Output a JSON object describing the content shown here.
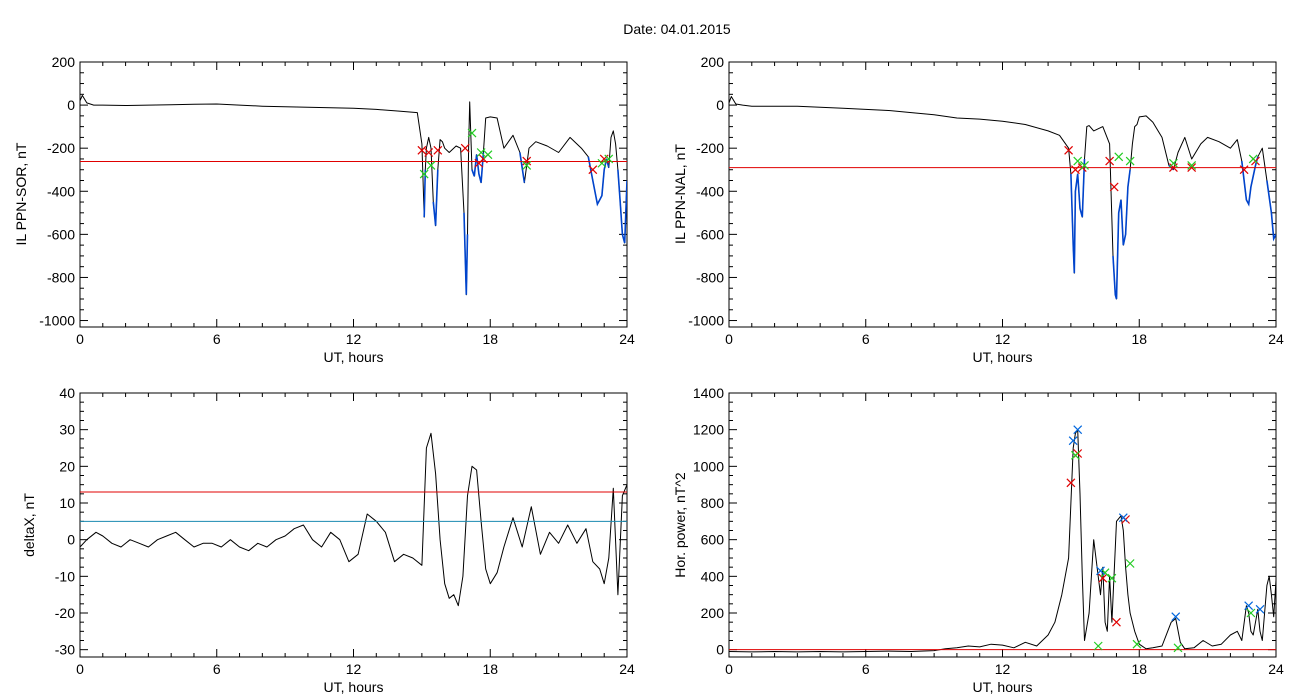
{
  "title": "Date:  04.01.2015",
  "colors": {
    "axis": "#000000",
    "signal": "#000000",
    "substorm_segment": "#0044cc",
    "threshold_red": "#e00000",
    "threshold_cyan": "#1a8ab0",
    "marker_red": "#e00000",
    "marker_green": "#22cc22",
    "marker_blue": "#0066dd"
  },
  "chart_data": [
    {
      "type": "line",
      "xlabel": "UT, hours",
      "ylabel": "IL PPN-SOR, nT",
      "xlim": [
        0,
        24
      ],
      "ylim": [
        -1030,
        200
      ],
      "xticks": [
        0,
        6,
        12,
        18,
        24
      ],
      "yticks": [
        -1000,
        -800,
        -600,
        -400,
        -200,
        0,
        200
      ],
      "threshold_lines": [
        {
          "color": "red",
          "y": -262
        }
      ],
      "series": [
        {
          "color": "black",
          "x": [
            0,
            0.1,
            0.3,
            0.6,
            1,
            2,
            3,
            4,
            5,
            6,
            7,
            8,
            9,
            10,
            11,
            12,
            13,
            14,
            14.8,
            15.0,
            15.1,
            15.15,
            15.2,
            15.3,
            15.4,
            15.5,
            15.6,
            15.7,
            15.8,
            15.9,
            16.0,
            16.2,
            16.5,
            16.7,
            16.85,
            16.95,
            17.0,
            17.05,
            17.1,
            17.2,
            17.3,
            17.4,
            17.5,
            17.6,
            17.7,
            17.8,
            18.0,
            18.3,
            18.6,
            19.0,
            19.3,
            19.5,
            19.7,
            20.0,
            20.5,
            21.0,
            21.5,
            22.0,
            22.3,
            22.5,
            22.7,
            22.8,
            22.9,
            23.0,
            23.1,
            23.2,
            23.3,
            23.4,
            23.5,
            23.6,
            23.7,
            23.8,
            23.9,
            24.0
          ],
          "y": [
            20,
            45,
            10,
            0,
            0,
            -2,
            0,
            2,
            4,
            5,
            0,
            -5,
            -8,
            -10,
            -12,
            -15,
            -20,
            -28,
            -35,
            -180,
            -520,
            -300,
            -200,
            -150,
            -200,
            -450,
            -560,
            -300,
            -160,
            -170,
            -200,
            -220,
            -190,
            -200,
            -500,
            -880,
            -600,
            -200,
            15,
            -300,
            -330,
            -230,
            -320,
            -360,
            -220,
            -60,
            -55,
            -60,
            -200,
            -140,
            -220,
            -360,
            -200,
            -170,
            -190,
            -220,
            -150,
            -200,
            -240,
            -350,
            -460,
            -440,
            -420,
            -300,
            -250,
            -290,
            -150,
            -120,
            -180,
            -300,
            -450,
            -600,
            -640,
            -350
          ]
        }
      ],
      "markers": {
        "red": [
          [
            15.0,
            -210
          ],
          [
            15.3,
            -220
          ],
          [
            15.7,
            -210
          ],
          [
            16.9,
            -200
          ],
          [
            17.5,
            -270
          ],
          [
            17.7,
            -250
          ],
          [
            19.6,
            -260
          ],
          [
            22.5,
            -300
          ],
          [
            23.0,
            -250
          ]
        ],
        "green": [
          [
            15.1,
            -320
          ],
          [
            15.4,
            -280
          ],
          [
            17.2,
            -130
          ],
          [
            17.6,
            -220
          ],
          [
            17.9,
            -230
          ],
          [
            19.6,
            -280
          ],
          [
            22.9,
            -270
          ],
          [
            23.2,
            -250
          ]
        ]
      }
    },
    {
      "type": "line",
      "xlabel": "UT, hours",
      "ylabel": "IL PPN-NAL, nT",
      "xlim": [
        0,
        24
      ],
      "ylim": [
        -1030,
        200
      ],
      "xticks": [
        0,
        6,
        12,
        18,
        24
      ],
      "yticks": [
        -1000,
        -800,
        -600,
        -400,
        -200,
        0,
        200
      ],
      "threshold_lines": [
        {
          "color": "red",
          "y": -290
        }
      ],
      "series": [
        {
          "color": "black",
          "x": [
            0,
            0.1,
            0.3,
            0.6,
            1,
            2,
            3,
            4,
            5,
            6,
            7,
            8,
            9,
            10,
            11,
            12,
            13,
            14,
            14.5,
            14.9,
            15.0,
            15.1,
            15.15,
            15.2,
            15.3,
            15.4,
            15.5,
            15.6,
            15.7,
            15.8,
            16.0,
            16.4,
            16.7,
            16.85,
            16.95,
            17.0,
            17.1,
            17.2,
            17.3,
            17.4,
            17.5,
            17.6,
            17.7,
            17.8,
            17.9,
            18.0,
            18.3,
            18.6,
            19.0,
            19.3,
            19.5,
            19.7,
            20.0,
            20.3,
            20.7,
            21.0,
            21.5,
            22.0,
            22.3,
            22.5,
            22.7,
            22.8,
            22.9,
            23.0,
            23.1,
            23.2,
            23.4,
            23.6,
            23.8,
            23.9,
            24.0
          ],
          "y": [
            10,
            40,
            5,
            0,
            -5,
            -5,
            -5,
            -10,
            -15,
            -20,
            -25,
            -35,
            -45,
            -60,
            -65,
            -75,
            -90,
            -120,
            -140,
            -200,
            -320,
            -650,
            -780,
            -400,
            -320,
            -480,
            -520,
            -250,
            -100,
            -95,
            -120,
            -100,
            -180,
            -700,
            -880,
            -900,
            -500,
            -440,
            -650,
            -600,
            -380,
            -300,
            -180,
            -100,
            -90,
            -55,
            -50,
            -80,
            -150,
            -280,
            -300,
            -220,
            -150,
            -250,
            -180,
            -150,
            -170,
            -200,
            -160,
            -260,
            -440,
            -460,
            -380,
            -330,
            -280,
            -240,
            -200,
            -350,
            -500,
            -620,
            -600
          ]
        }
      ],
      "markers": {
        "red": [
          [
            14.9,
            -210
          ],
          [
            15.2,
            -300
          ],
          [
            15.5,
            -290
          ],
          [
            16.7,
            -260
          ],
          [
            16.9,
            -380
          ],
          [
            19.5,
            -290
          ],
          [
            20.3,
            -290
          ],
          [
            22.6,
            -300
          ],
          [
            23.1,
            -260
          ]
        ],
        "green": [
          [
            15.3,
            -260
          ],
          [
            15.6,
            -280
          ],
          [
            17.1,
            -240
          ],
          [
            17.6,
            -260
          ],
          [
            19.5,
            -270
          ],
          [
            20.3,
            -280
          ],
          [
            23.0,
            -250
          ]
        ]
      }
    },
    {
      "type": "line",
      "xlabel": "UT, hours",
      "ylabel": "deltaX, nT",
      "xlim": [
        0,
        24
      ],
      "ylim": [
        -32,
        40
      ],
      "xticks": [
        0,
        6,
        12,
        18,
        24
      ],
      "yticks": [
        -30,
        -20,
        -10,
        0,
        10,
        20,
        30,
        40
      ],
      "threshold_lines": [
        {
          "color": "red",
          "y": 13
        },
        {
          "color": "cyan",
          "y": 5
        }
      ],
      "series": [
        {
          "color": "black",
          "x": [
            0,
            0.3,
            0.7,
            1.0,
            1.4,
            1.8,
            2.2,
            2.6,
            3.0,
            3.4,
            3.8,
            4.2,
            4.6,
            5.0,
            5.4,
            5.8,
            6.2,
            6.6,
            7.0,
            7.4,
            7.8,
            8.2,
            8.6,
            9.0,
            9.4,
            9.8,
            10.2,
            10.6,
            11.0,
            11.4,
            11.8,
            12.2,
            12.6,
            13.0,
            13.4,
            13.8,
            14.2,
            14.6,
            15.0,
            15.2,
            15.4,
            15.6,
            15.8,
            16.0,
            16.2,
            16.4,
            16.6,
            16.8,
            17.0,
            17.2,
            17.4,
            17.6,
            17.8,
            18.0,
            18.3,
            18.6,
            19.0,
            19.4,
            19.8,
            20.2,
            20.6,
            21.0,
            21.4,
            21.8,
            22.2,
            22.5,
            22.8,
            23.0,
            23.2,
            23.4,
            23.6,
            23.8,
            24.0
          ],
          "y": [
            -2,
            0,
            2,
            1,
            -1,
            -2,
            0,
            -1,
            -2,
            0,
            1,
            2,
            0,
            -2,
            -1,
            -1,
            -2,
            0,
            -2,
            -3,
            -1,
            -2,
            0,
            1,
            3,
            4,
            0,
            -2,
            2,
            0,
            -6,
            -4,
            7,
            5,
            2,
            -6,
            -4,
            -5,
            -7,
            25,
            29,
            18,
            0,
            -12,
            -16,
            -15,
            -18,
            -10,
            12,
            20,
            19,
            5,
            -8,
            -12,
            -9,
            -2,
            6,
            -2,
            9,
            -4,
            2,
            -1,
            4,
            -1,
            3,
            -6,
            -8,
            -12,
            -5,
            14,
            -15,
            12,
            15
          ]
        }
      ],
      "markers": {
        "red": [],
        "green": []
      }
    },
    {
      "type": "line",
      "xlabel": "UT, hours",
      "ylabel": "Hor. power, nT^2",
      "xlim": [
        0,
        24
      ],
      "ylim": [
        -40,
        1400
      ],
      "xticks": [
        0,
        6,
        12,
        18,
        24
      ],
      "yticks": [
        0,
        200,
        400,
        600,
        800,
        1000,
        1200,
        1400
      ],
      "threshold_lines": [
        {
          "color": "red",
          "y": 0
        }
      ],
      "series": [
        {
          "color": "black",
          "x": [
            0,
            1,
            2,
            3,
            4,
            5,
            6,
            7,
            8,
            9,
            9.5,
            10,
            10.5,
            11,
            11.5,
            12,
            12.5,
            13,
            13.5,
            14,
            14.3,
            14.6,
            14.9,
            15.0,
            15.1,
            15.2,
            15.3,
            15.4,
            15.5,
            15.6,
            15.8,
            16.0,
            16.2,
            16.3,
            16.4,
            16.5,
            16.6,
            16.7,
            16.8,
            17.0,
            17.2,
            17.3,
            17.4,
            17.5,
            17.6,
            17.8,
            18.0,
            18.3,
            18.6,
            19.0,
            19.4,
            19.6,
            19.8,
            20.0,
            20.4,
            20.8,
            21.2,
            21.6,
            22.0,
            22.3,
            22.5,
            22.7,
            22.8,
            22.9,
            23.0,
            23.1,
            23.2,
            23.3,
            23.4,
            23.5,
            23.6,
            23.7,
            23.8,
            23.9,
            24.0
          ],
          "y": [
            -10,
            -12,
            -10,
            -12,
            -10,
            -12,
            -10,
            -8,
            -10,
            -5,
            5,
            10,
            20,
            15,
            30,
            25,
            10,
            40,
            20,
            80,
            150,
            300,
            500,
            800,
            1100,
            1180,
            1200,
            850,
            400,
            50,
            200,
            600,
            400,
            300,
            450,
            150,
            100,
            400,
            150,
            700,
            730,
            650,
            450,
            300,
            200,
            100,
            30,
            5,
            10,
            20,
            150,
            170,
            40,
            5,
            10,
            50,
            20,
            30,
            80,
            100,
            50,
            240,
            200,
            100,
            80,
            150,
            220,
            100,
            50,
            200,
            350,
            400,
            300,
            180,
            380
          ]
        }
      ],
      "markers": {
        "red": [
          [
            15.0,
            910
          ],
          [
            15.3,
            1070
          ],
          [
            16.4,
            390
          ],
          [
            17.0,
            150
          ],
          [
            17.4,
            710
          ]
        ],
        "green": [
          [
            15.2,
            1060
          ],
          [
            16.2,
            20
          ],
          [
            16.5,
            420
          ],
          [
            16.8,
            390
          ],
          [
            17.6,
            470
          ],
          [
            17.9,
            30
          ],
          [
            19.7,
            10
          ],
          [
            22.9,
            200
          ]
        ],
        "blue": [
          [
            15.1,
            1140
          ],
          [
            15.3,
            1200
          ],
          [
            16.3,
            430
          ],
          [
            17.3,
            720
          ],
          [
            19.6,
            180
          ],
          [
            22.8,
            240
          ],
          [
            23.3,
            220
          ]
        ]
      }
    }
  ]
}
